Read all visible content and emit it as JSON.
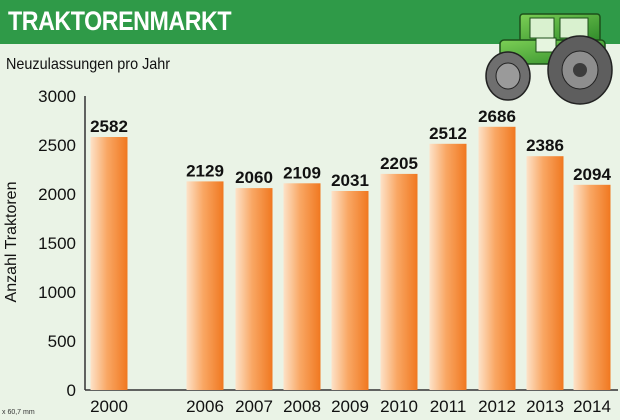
{
  "header": {
    "title": "TRAKTORENMARKT"
  },
  "credit": "x 60,7 mm",
  "colors": {
    "header": "#2f9a48",
    "bar_light": "#fde2c8",
    "bar_dark": "#f07820",
    "background": "#eaf3e6"
  },
  "icons": {
    "tractor": "tractor-icon"
  },
  "chart_data": {
    "type": "bar",
    "title": "",
    "subtitle": "Neuzulassungen pro Jahr",
    "xlabel": "",
    "ylabel": "Anzahl Traktoren",
    "categories": [
      "2000",
      "2006",
      "2007",
      "2008",
      "2009",
      "2010",
      "2011",
      "2012",
      "2013",
      "2014"
    ],
    "values": [
      2582,
      2129,
      2060,
      2109,
      2031,
      2205,
      2512,
      2686,
      2386,
      2094
    ],
    "value_labels": [
      "2582",
      "2129",
      "2060",
      "2109",
      "2031",
      "2205",
      "2512",
      "2686",
      "2386",
      "2094"
    ],
    "yticks": [
      "0",
      "500",
      "1000",
      "1500",
      "2000",
      "2500",
      "3000"
    ],
    "ytick_values": [
      0,
      500,
      1000,
      1500,
      2000,
      2500,
      3000
    ],
    "ylim": [
      0,
      3000
    ],
    "grid": false,
    "legend": "none"
  }
}
